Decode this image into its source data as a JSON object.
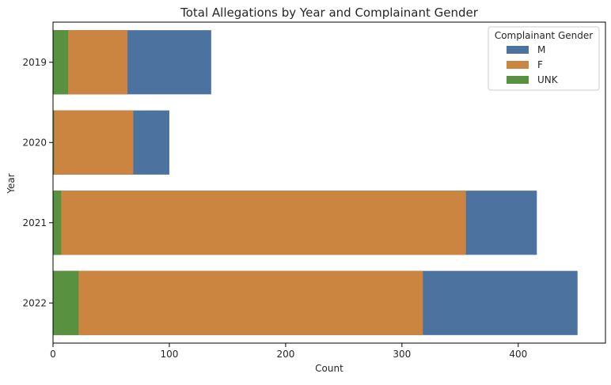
{
  "chart_data": {
    "type": "bar",
    "orientation": "horizontal",
    "stacking": "overlay",
    "title": "Total Allegations by Year and Complainant Gender",
    "xlabel": "Count",
    "ylabel": "Year",
    "categories": [
      "2019",
      "2020",
      "2021",
      "2022"
    ],
    "xlim": [
      0,
      475
    ],
    "xticks": [
      0,
      100,
      200,
      300,
      400
    ],
    "grid": false,
    "legend": {
      "title": "Complainant Gender",
      "placement": "top-right",
      "entries": [
        "M",
        "F",
        "UNK"
      ]
    },
    "series": [
      {
        "name": "M",
        "color": "#4c72a0",
        "values": [
          136,
          100,
          416,
          451
        ]
      },
      {
        "name": "F",
        "color": "#cc8540",
        "values": [
          64,
          69,
          355,
          318
        ]
      },
      {
        "name": "UNK",
        "color": "#58913f",
        "values": [
          13,
          1,
          7,
          22
        ]
      }
    ]
  }
}
